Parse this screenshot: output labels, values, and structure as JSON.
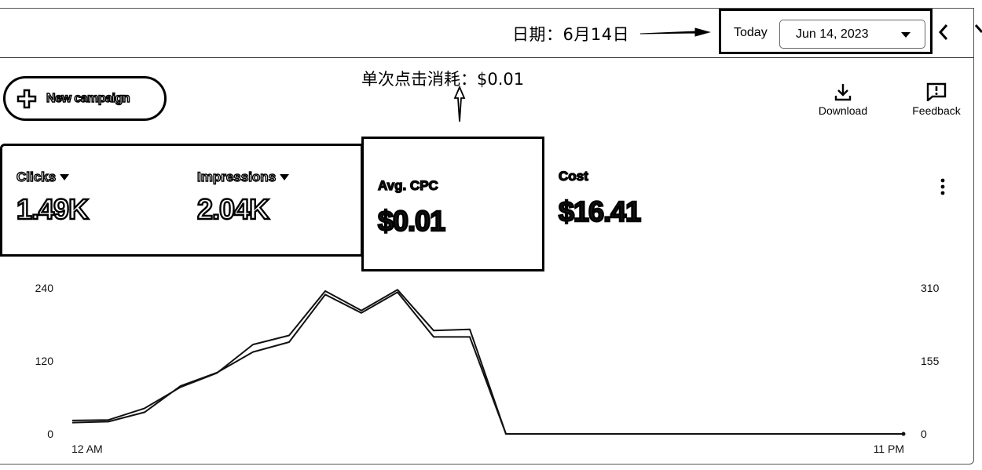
{
  "header": {
    "annotation_date": "日期：6月14日",
    "today_label": "Today",
    "date_value": "Jun 14, 2023",
    "prev_icon": "chevron-left-icon",
    "next_icon": "chevron-right-icon"
  },
  "toolbar": {
    "new_campaign_label": "New campaign",
    "download_label": "Download",
    "feedback_label": "Feedback"
  },
  "annotation_cpc": "单次点击消耗：$0.01",
  "metrics": {
    "clicks": {
      "name": "Clicks",
      "value": "1.49K"
    },
    "impressions": {
      "name": "Impressions",
      "value": "2.04K"
    },
    "avg_cpc": {
      "name": "Avg. CPC",
      "value": "$0.01"
    },
    "cost": {
      "name": "Cost",
      "value": "$16.41"
    }
  },
  "chart_data": {
    "type": "line",
    "x": [
      0,
      1,
      2,
      3,
      4,
      5,
      6,
      7,
      8,
      9,
      10,
      11,
      12,
      13,
      14,
      15,
      16,
      17,
      18,
      19,
      20,
      21,
      22,
      23
    ],
    "x_tick_labels": [
      "12 AM",
      "11 PM"
    ],
    "y_left_ticks": [
      "0",
      "120",
      "240"
    ],
    "y_left_lim": [
      0,
      240
    ],
    "y_right_ticks": [
      "0",
      "155",
      "310"
    ],
    "y_right_lim": [
      0,
      310
    ],
    "series": [
      {
        "axis": "left",
        "values": [
          22,
          23,
          42,
          77,
          100,
          147,
          162,
          235,
          203,
          237,
          170,
          172,
          0,
          0,
          0,
          0,
          0,
          0,
          0,
          0,
          0,
          0,
          0,
          0
        ]
      },
      {
        "axis": "right",
        "values": [
          24,
          26,
          46,
          102,
          130,
          174,
          195,
          296,
          257,
          301,
          206,
          206,
          0,
          0,
          0,
          0,
          0,
          0,
          0,
          0,
          0,
          0,
          0,
          0
        ]
      }
    ],
    "grid": false,
    "legend": "none"
  }
}
